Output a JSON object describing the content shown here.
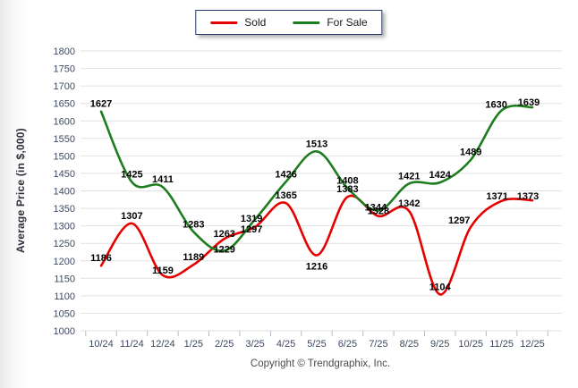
{
  "page": {
    "copyright": "Copyright © Trendgraphix, Inc."
  },
  "legend": {
    "items": [
      {
        "label": "Sold",
        "color": "#e60000"
      },
      {
        "label": "For Sale",
        "color": "#1e7d1e"
      }
    ]
  },
  "chart_data": {
    "type": "line",
    "title": "",
    "ylabel": "Average Price (in $,000)",
    "xlabel": "",
    "x": [
      "10/24",
      "11/24",
      "12/24",
      "1/25",
      "2/25",
      "3/25",
      "4/25",
      "5/25",
      "6/25",
      "7/25",
      "8/25",
      "9/25",
      "10/25",
      "11/25",
      "12/25"
    ],
    "series": [
      {
        "name": "Sold",
        "color": "#e60000",
        "values": [
          1186,
          1307,
          1159,
          1189,
          1263,
          1297,
          1365,
          1216,
          1383,
          1328,
          1342,
          1104,
          1297,
          1371,
          1373
        ]
      },
      {
        "name": "For Sale",
        "color": "#1e7d1e",
        "values": [
          1627,
          1425,
          1411,
          1283,
          1229,
          1319,
          1426,
          1513,
          1408,
          1344,
          1421,
          1424,
          1489,
          1630,
          1639
        ]
      }
    ],
    "ylim": [
      1000,
      1800
    ],
    "ytick_step": 50,
    "yticks": [
      1000,
      1050,
      1100,
      1150,
      1200,
      1250,
      1300,
      1350,
      1400,
      1450,
      1500,
      1550,
      1600,
      1650,
      1700,
      1750,
      1800
    ],
    "grid": true,
    "smooth": true,
    "data_labels": true,
    "legend_position": "top-center",
    "colors": {
      "gridline": "#e2e2e2",
      "tick_mark": "#b5bcc9",
      "tick_text": "#3d4961",
      "data_label_text": "#000000"
    }
  }
}
